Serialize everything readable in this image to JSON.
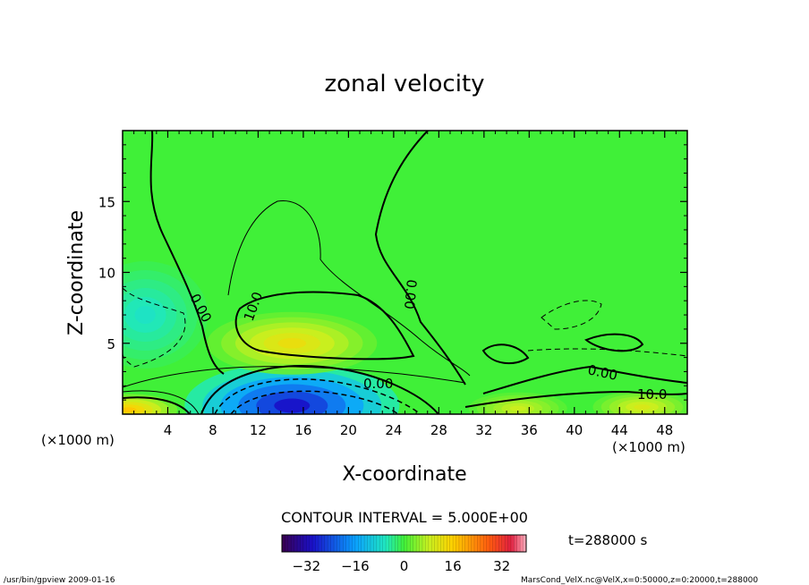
{
  "chart_data": {
    "type": "heatmap",
    "title": "zonal velocity",
    "xlabel": "X-coordinate",
    "ylabel": "Z-coordinate",
    "x_unit": "(×1000 m)",
    "y_unit": "(×1000 m)",
    "x_ticks": [
      4,
      8,
      12,
      16,
      20,
      24,
      28,
      32,
      36,
      40,
      44,
      48
    ],
    "y_ticks": [
      5,
      10,
      15
    ],
    "xlim": [
      0,
      50
    ],
    "ylim": [
      0,
      20
    ],
    "contour_interval_text": "CONTOUR INTERVAL = 5.000E+00",
    "contour_labels": [
      "0.00",
      "0.00",
      "10.0",
      "0.00",
      "0.00",
      "10.0"
    ],
    "colorbar": {
      "ticks": [
        -32,
        -16,
        0,
        16,
        32
      ],
      "range": [
        -40,
        40
      ]
    },
    "time_text": "t=288000 s",
    "field_features": [
      {
        "kind": "jet_core_negative",
        "x": 15,
        "z": 0.6,
        "value": -35
      },
      {
        "kind": "positive_lobe",
        "x": 15,
        "z": 5,
        "value": 15
      },
      {
        "kind": "positive_surface",
        "x": 0.5,
        "z": 0.3,
        "value": 20
      },
      {
        "kind": "positive_surface",
        "x": 35,
        "z": 0.4,
        "value": 10
      },
      {
        "kind": "positive_surface",
        "x": 46,
        "z": 0.5,
        "value": 12
      },
      {
        "kind": "negative_region",
        "x": 2,
        "z": 7,
        "value": -8
      }
    ]
  },
  "footer": {
    "left": "/usr/bin/gpview   2009-01-16",
    "right": "MarsCond_VelX.nc@VelX,x=0:50000,z=0:20000,t=288000"
  }
}
